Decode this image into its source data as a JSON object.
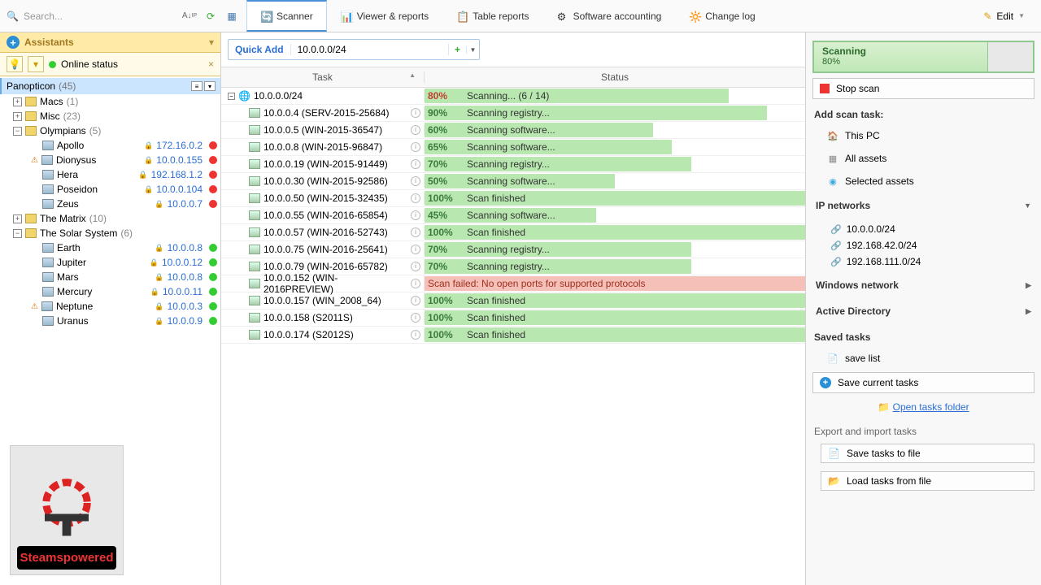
{
  "toolbar": {
    "search_placeholder": "Search...",
    "tabs": [
      {
        "label": "Scanner",
        "active": true,
        "color": "#3a3"
      },
      {
        "label": "Viewer & reports",
        "active": false
      },
      {
        "label": "Table reports",
        "active": false
      },
      {
        "label": "Software accounting",
        "active": false
      },
      {
        "label": "Change log",
        "active": false
      }
    ],
    "edit_label": "Edit"
  },
  "assistants": {
    "title": "Assistants",
    "online_status": "Online status"
  },
  "tree": {
    "root": {
      "name": "Panopticon",
      "count": "(45)"
    },
    "folders": [
      {
        "name": "Macs",
        "count": "(1)",
        "hosts": []
      },
      {
        "name": "Misc",
        "count": "(23)",
        "hosts": []
      },
      {
        "name": "Olympians",
        "count": "(5)",
        "hosts": [
          {
            "name": "Apollo",
            "ip": "172.16.0.2",
            "status": "r",
            "warn": false
          },
          {
            "name": "Dionysus",
            "ip": "10.0.0.155",
            "status": "r",
            "warn": true
          },
          {
            "name": "Hera",
            "ip": "192.168.1.2",
            "status": "r",
            "warn": false
          },
          {
            "name": "Poseidon",
            "ip": "10.0.0.104",
            "status": "r",
            "warn": false
          },
          {
            "name": "Zeus",
            "ip": "10.0.0.7",
            "status": "r",
            "warn": false
          }
        ]
      },
      {
        "name": "The Matrix",
        "count": "(10)",
        "hosts": []
      },
      {
        "name": "The Solar System",
        "count": "(6)",
        "hosts": [
          {
            "name": "Earth",
            "ip": "10.0.0.8",
            "status": "g",
            "warn": false
          },
          {
            "name": "Jupiter",
            "ip": "10.0.0.12",
            "status": "g",
            "warn": false
          },
          {
            "name": "Mars",
            "ip": "10.0.0.8",
            "status": "g",
            "warn": false
          },
          {
            "name": "Mercury",
            "ip": "10.0.0.11",
            "status": "g",
            "warn": false
          },
          {
            "name": "Neptune",
            "ip": "10.0.0.3",
            "status": "g",
            "warn": true
          },
          {
            "name": "Uranus",
            "ip": "10.0.0.9",
            "status": "g",
            "warn": false
          }
        ]
      }
    ]
  },
  "logo_text": "Steamspowered",
  "quick_add": {
    "label": "Quick Add",
    "value": "10.0.0.0/24"
  },
  "grid": {
    "col_task": "Task",
    "col_status": "Status",
    "root_task": "10.0.0.0/24",
    "root_pct": "80%",
    "root_msg": "Scanning... (6 / 14)",
    "root_pct_val": 80,
    "rows": [
      {
        "task": "10.0.0.4 (SERV-2015-25684)",
        "pct": "90%",
        "pcv": 90,
        "msg": "Scanning registry...",
        "fail": false
      },
      {
        "task": "10.0.0.5 (WIN-2015-36547)",
        "pct": "60%",
        "pcv": 60,
        "msg": "Scanning software...",
        "fail": false
      },
      {
        "task": "10.0.0.8  (WIN-2015-96847)",
        "pct": "65%",
        "pcv": 65,
        "msg": "Scanning software...",
        "fail": false
      },
      {
        "task": "10.0.0.19 (WIN-2015-91449)",
        "pct": "70%",
        "pcv": 70,
        "msg": "Scanning registry...",
        "fail": false
      },
      {
        "task": "10.0.0.30 (WIN-2015-92586)",
        "pct": "50%",
        "pcv": 50,
        "msg": "Scanning software...",
        "fail": false
      },
      {
        "task": "10.0.0.50 (WIN-2015-32435)",
        "pct": "100%",
        "pcv": 100,
        "msg": "Scan finished",
        "fail": false
      },
      {
        "task": "10.0.0.55 (WIN-2016-65854)",
        "pct": "45%",
        "pcv": 45,
        "msg": "Scanning software...",
        "fail": false
      },
      {
        "task": "10.0.0.57 (WIN-2016-52743)",
        "pct": "100%",
        "pcv": 100,
        "msg": "Scan finished",
        "fail": false
      },
      {
        "task": "10.0.0.75 (WIN-2016-25641)",
        "pct": "70%",
        "pcv": 70,
        "msg": "Scanning registry...",
        "fail": false
      },
      {
        "task": "10.0.0.79 (WIN-2016-65782)",
        "pct": "70%",
        "pcv": 70,
        "msg": "Scanning registry...",
        "fail": false
      },
      {
        "task": "10.0.0.152 (WIN-2016PREVIEW)",
        "pct": "",
        "pcv": 100,
        "msg": "Scan failed: No open ports for supported protocols",
        "fail": true
      },
      {
        "task": "10.0.0.157 (WIN_2008_64)",
        "pct": "100%",
        "pcv": 100,
        "msg": "Scan finished",
        "fail": false
      },
      {
        "task": "10.0.0.158 (S2011S)",
        "pct": "100%",
        "pcv": 100,
        "msg": "Scan finished",
        "fail": false
      },
      {
        "task": "10.0.0.174 (S2012S)",
        "pct": "100%",
        "pcv": 100,
        "msg": "Scan finished",
        "fail": false
      }
    ]
  },
  "right": {
    "scanning_title": "Scanning",
    "scanning_pct": "80%",
    "stop_scan": "Stop scan",
    "add_task": "Add scan task:",
    "this_pc": "This PC",
    "all_assets": "All assets",
    "sel_assets": "Selected assets",
    "ip_networks": "IP networks",
    "nets": [
      "10.0.0.0/24",
      "192.168.42.0/24",
      "192.168.111.0/24"
    ],
    "win_net": "Windows network",
    "ad": "Active Directory",
    "saved_tasks": "Saved tasks",
    "save_list": "save list",
    "save_current": "Save current tasks",
    "open_folder": "Open tasks folder",
    "exp_imp": "Export and import tasks",
    "save_file": "Save tasks to file",
    "load_file": "Load tasks from file"
  }
}
